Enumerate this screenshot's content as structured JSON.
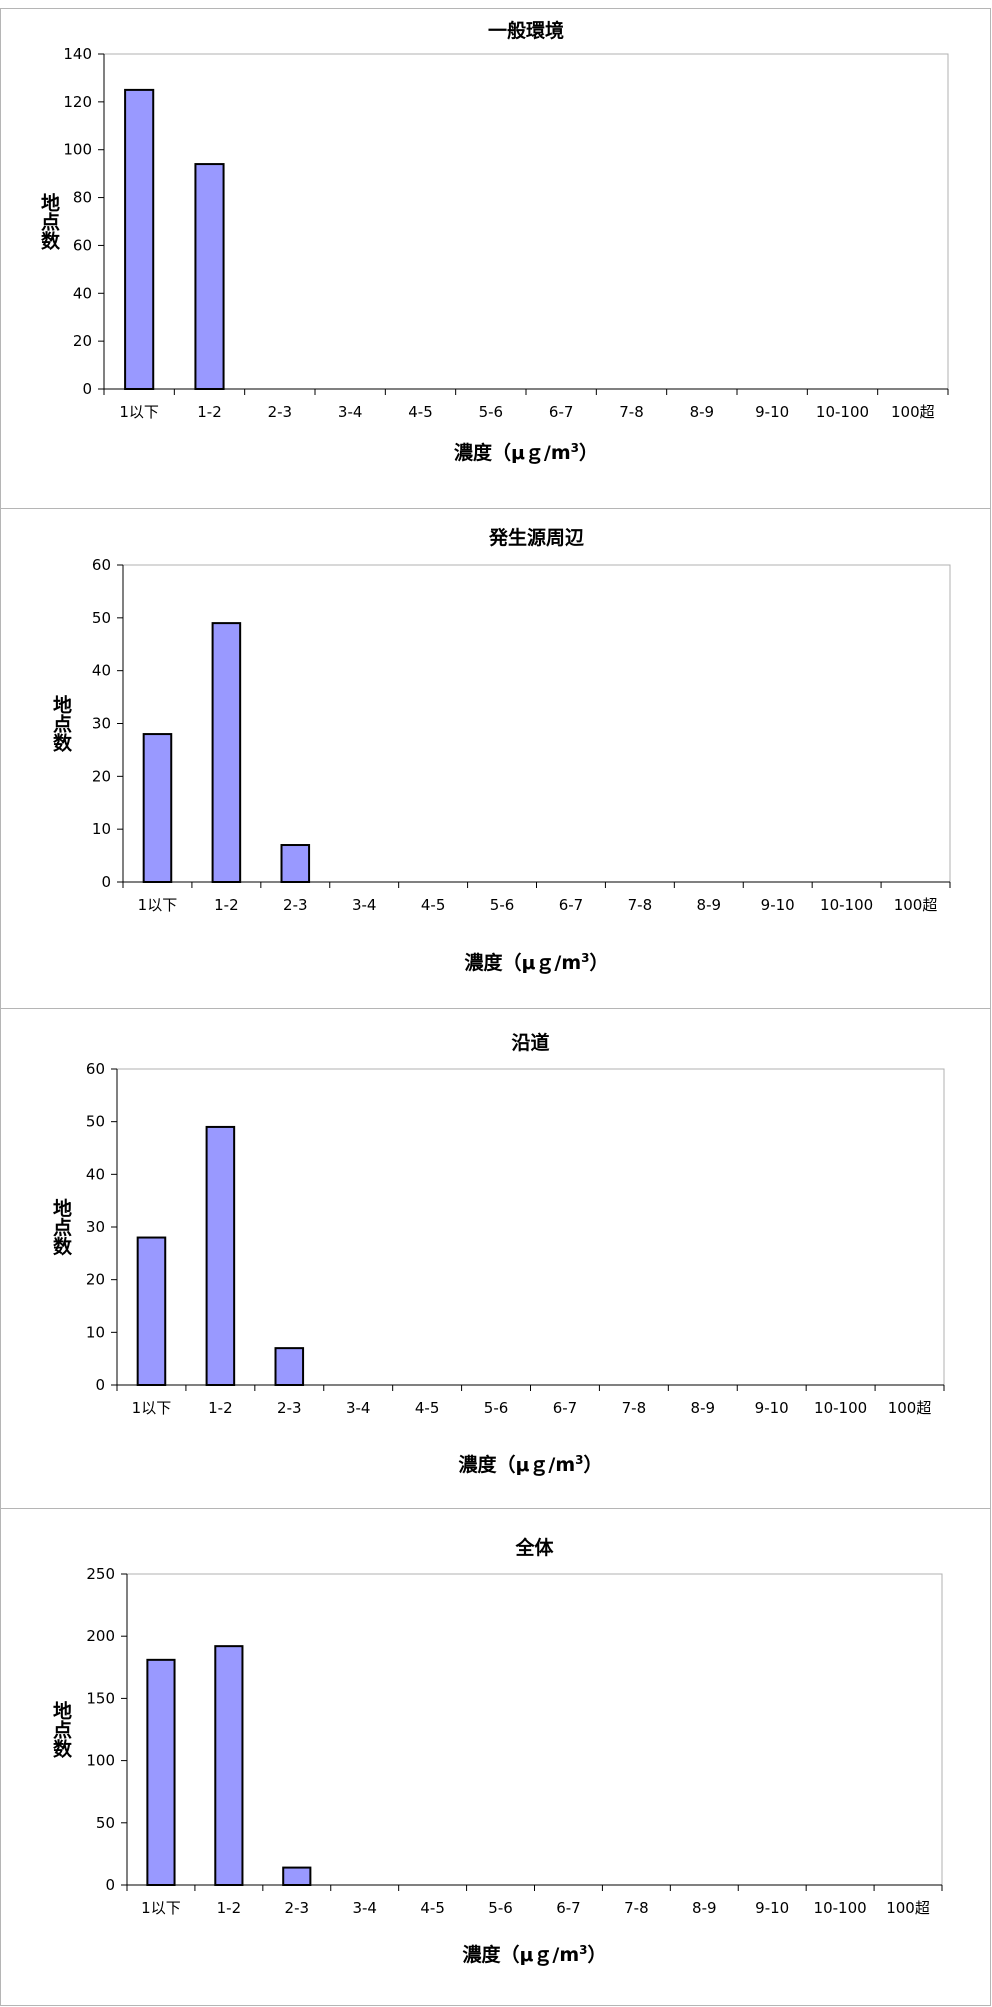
{
  "chart_data": [
    {
      "type": "bar",
      "title": "一般環境",
      "xlabel_main": "濃度（μｇ/m",
      "xlabel_sup": "3",
      "xlabel_close": "）",
      "ylabel": "地点数",
      "categories": [
        "1以下",
        "1-2",
        "2-3",
        "3-4",
        "4-5",
        "5-6",
        "6-7",
        "7-8",
        "8-9",
        "9-10",
        "10-100",
        "100超"
      ],
      "values": [
        125,
        94,
        0,
        0,
        0,
        0,
        0,
        0,
        0,
        0,
        0,
        0
      ],
      "ylim": [
        0,
        140
      ],
      "yticks": [
        0,
        20,
        40,
        60,
        80,
        100,
        120,
        140
      ],
      "grid": false,
      "bar_color": "#9999ff"
    },
    {
      "type": "bar",
      "title": "発生源周辺",
      "xlabel_main": "濃度（μｇ/m",
      "xlabel_sup": "3",
      "xlabel_close": "）",
      "ylabel": "地点数",
      "categories": [
        "1以下",
        "1-2",
        "2-3",
        "3-4",
        "4-5",
        "5-6",
        "6-7",
        "7-8",
        "8-9",
        "9-10",
        "10-100",
        "100超"
      ],
      "values": [
        28,
        49,
        7,
        0,
        0,
        0,
        0,
        0,
        0,
        0,
        0,
        0
      ],
      "ylim": [
        0,
        60
      ],
      "yticks": [
        0,
        10,
        20,
        30,
        40,
        50,
        60
      ],
      "grid": false,
      "bar_color": "#9999ff"
    },
    {
      "type": "bar",
      "title": "沿道",
      "xlabel_main": "濃度（μｇ/m",
      "xlabel_sup": "3",
      "xlabel_close": "）",
      "ylabel": "地点数",
      "categories": [
        "1以下",
        "1-2",
        "2-3",
        "3-4",
        "4-5",
        "5-6",
        "6-7",
        "7-8",
        "8-9",
        "9-10",
        "10-100",
        "100超"
      ],
      "values": [
        28,
        49,
        7,
        0,
        0,
        0,
        0,
        0,
        0,
        0,
        0,
        0
      ],
      "ylim": [
        0,
        60
      ],
      "yticks": [
        0,
        10,
        20,
        30,
        40,
        50,
        60
      ],
      "grid": false,
      "bar_color": "#9999ff"
    },
    {
      "type": "bar",
      "title": "全体",
      "xlabel_main": "濃度（μｇ/m",
      "xlabel_sup": "3",
      "xlabel_close": "）",
      "ylabel": "地点数",
      "categories": [
        "1以下",
        "1-2",
        "2-3",
        "3-4",
        "4-5",
        "5-6",
        "6-7",
        "7-8",
        "8-9",
        "9-10",
        "10-100",
        "100超"
      ],
      "values": [
        181,
        192,
        14,
        0,
        0,
        0,
        0,
        0,
        0,
        0,
        0,
        0
      ],
      "ylim": [
        0,
        250
      ],
      "yticks": [
        0,
        50,
        100,
        150,
        200,
        250
      ],
      "grid": false,
      "bar_color": "#9999ff"
    }
  ]
}
